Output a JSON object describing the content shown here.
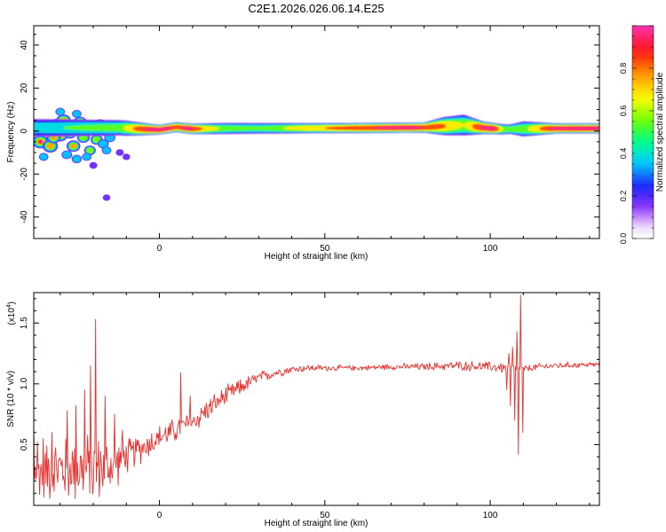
{
  "chart_data": [
    {
      "type": "heatmap",
      "title": "C2E1.2026.026.06.14.E25",
      "xlabel": "Height of straight line (km)",
      "ylabel": "Frequency (Hz)",
      "xlim": [
        -38,
        133
      ],
      "ylim": [
        -50,
        49
      ],
      "x_ticks": [
        0,
        50,
        100
      ],
      "y_ticks": [
        -40,
        -20,
        0,
        20,
        40
      ],
      "colorbar": {
        "label": "Normalized spectral amplitude",
        "range": [
          0.0,
          1.0
        ],
        "ticks": [
          0.0,
          0.2,
          0.4,
          0.6,
          0.8
        ],
        "tick_labels": [
          "0.0",
          "0.2",
          "0.4",
          "0.6",
          "0.8"
        ]
      },
      "band": {
        "description_free": true,
        "center_freq": [
          [
            -38,
            1.5
          ],
          [
            -12,
            1.5
          ],
          [
            -6,
            1.0
          ],
          [
            0,
            0.6
          ],
          [
            5,
            1.8
          ],
          [
            10,
            1.0
          ],
          [
            20,
            1.2
          ],
          [
            40,
            1.3
          ],
          [
            60,
            1.4
          ],
          [
            80,
            1.6
          ],
          [
            85,
            2.2
          ],
          [
            92,
            2.8
          ],
          [
            98,
            1.5
          ],
          [
            104,
            0.8
          ],
          [
            110,
            1.0
          ],
          [
            120,
            1.2
          ],
          [
            133,
            1.2
          ]
        ],
        "half_width": [
          [
            -38,
            3.0
          ],
          [
            -10,
            2.5
          ],
          [
            0,
            1.5
          ],
          [
            20,
            1.8
          ],
          [
            50,
            1.6
          ],
          [
            80,
            1.6
          ],
          [
            86,
            3.0
          ],
          [
            92,
            3.5
          ],
          [
            98,
            2.0
          ],
          [
            106,
            1.5
          ],
          [
            110,
            2.5
          ],
          [
            120,
            1.6
          ],
          [
            133,
            1.6
          ]
        ],
        "amplitude": [
          [
            -38,
            0.4
          ],
          [
            -12,
            0.55
          ],
          [
            -6,
            0.85
          ],
          [
            -2,
            0.95
          ],
          [
            2,
            0.95
          ],
          [
            5,
            0.85
          ],
          [
            9,
            0.95
          ],
          [
            14,
            0.7
          ],
          [
            20,
            0.55
          ],
          [
            30,
            0.5
          ],
          [
            45,
            0.7
          ],
          [
            60,
            0.85
          ],
          [
            75,
            0.95
          ],
          [
            85,
            0.8
          ],
          [
            92,
            0.6
          ],
          [
            97,
            0.9
          ],
          [
            101,
            0.95
          ],
          [
            104,
            0.6
          ],
          [
            110,
            0.55
          ],
          [
            118,
            0.9
          ],
          [
            133,
            0.95
          ]
        ]
      },
      "blobs": [
        [
          -36,
          -5,
          0.9
        ],
        [
          -33,
          -7,
          0.85
        ],
        [
          -31,
          3,
          0.7
        ],
        [
          -30,
          -2,
          0.8
        ],
        [
          -29,
          5,
          0.75
        ],
        [
          -27,
          -1,
          0.6
        ],
        [
          -26,
          -7,
          0.7
        ],
        [
          -24,
          4,
          0.7
        ],
        [
          -23,
          -3,
          0.6
        ],
        [
          -22,
          2,
          0.55
        ],
        [
          -21,
          -9,
          0.5
        ],
        [
          -20,
          1,
          0.5
        ],
        [
          -19,
          -4,
          0.55
        ],
        [
          -18,
          3,
          0.6
        ],
        [
          -17,
          -6,
          0.45
        ],
        [
          -16,
          0,
          0.6
        ],
        [
          -15,
          -3,
          0.45
        ],
        [
          -14,
          2,
          0.5
        ],
        [
          -28,
          -11,
          0.4
        ],
        [
          -25,
          -13,
          0.35
        ],
        [
          -34,
          2,
          0.65
        ],
        [
          -32,
          -3,
          0.7
        ],
        [
          -35,
          0,
          0.5
        ],
        [
          -22,
          -12,
          0.3
        ],
        [
          -16,
          -9,
          0.3
        ],
        [
          -12,
          -10,
          0.15
        ],
        [
          -10,
          -12,
          0.12
        ],
        [
          -16,
          -31,
          0.12
        ],
        [
          -20,
          -16,
          0.15
        ],
        [
          -30,
          9,
          0.3
        ],
        [
          -25,
          8,
          0.3
        ],
        [
          -35,
          -12,
          0.3
        ]
      ]
    },
    {
      "type": "line",
      "xlabel": "Height of straight line (km)",
      "ylabel": "SNR (10 * v/v)",
      "multiplier_label": "(x10",
      "multiplier_exp": "4",
      "multiplier_close": ")",
      "xlim": [
        -38,
        133
      ],
      "ylim": [
        0,
        1.75
      ],
      "x_ticks": [
        0,
        50,
        100
      ],
      "y_ticks": [
        0.5,
        1.0,
        1.5
      ],
      "y_tick_labels": [
        "0.5",
        "1.0",
        "1.5"
      ],
      "series": [
        {
          "name": "SNR",
          "color": "#e8322f",
          "trend": [
            [
              -38,
              0.28
            ],
            [
              -30,
              0.3
            ],
            [
              -20,
              0.3
            ],
            [
              -15,
              0.32
            ],
            [
              -10,
              0.4
            ],
            [
              -5,
              0.48
            ],
            [
              0,
              0.56
            ],
            [
              5,
              0.62
            ],
            [
              10,
              0.68
            ],
            [
              15,
              0.8
            ],
            [
              20,
              0.9
            ],
            [
              25,
              0.98
            ],
            [
              30,
              1.05
            ],
            [
              35,
              1.09
            ],
            [
              40,
              1.12
            ],
            [
              45,
              1.13
            ],
            [
              50,
              1.13
            ],
            [
              60,
              1.13
            ],
            [
              70,
              1.14
            ],
            [
              80,
              1.14
            ],
            [
              90,
              1.15
            ],
            [
              100,
              1.14
            ],
            [
              105,
              1.13
            ],
            [
              110,
              1.12
            ],
            [
              115,
              1.14
            ],
            [
              120,
              1.15
            ],
            [
              133,
              1.16
            ]
          ],
          "noise_amp": [
            [
              -38,
              0.22
            ],
            [
              -30,
              0.26
            ],
            [
              -20,
              0.28
            ],
            [
              -15,
              0.22
            ],
            [
              -10,
              0.14
            ],
            [
              0,
              0.1
            ],
            [
              10,
              0.1
            ],
            [
              20,
              0.08
            ],
            [
              30,
              0.05
            ],
            [
              40,
              0.03
            ],
            [
              60,
              0.02
            ],
            [
              80,
              0.03
            ],
            [
              95,
              0.04
            ],
            [
              100,
              0.04
            ],
            [
              105,
              0.05
            ],
            [
              110,
              0.03
            ],
            [
              133,
              0.02
            ]
          ],
          "spikes": [
            [
              -38.5,
              0.65
            ],
            [
              -36.8,
              0.52
            ],
            [
              -35.2,
              0.55
            ],
            [
              -32.5,
              0.6
            ],
            [
              -27.9,
              0.78
            ],
            [
              -25.3,
              0.82
            ],
            [
              -22.6,
              0.95
            ],
            [
              -20.8,
              1.15
            ],
            [
              -19.2,
              1.53
            ],
            [
              -17.9,
              0.22
            ],
            [
              -16.4,
              0.9
            ],
            [
              -13.5,
              0.75
            ],
            [
              -11.2,
              0.62
            ],
            [
              6.5,
              1.09
            ],
            [
              9.2,
              0.9
            ],
            [
              17.5,
              0.88
            ],
            [
              108.6,
              0.42
            ],
            [
              109.2,
              1.73
            ],
            [
              109.8,
              0.6
            ],
            [
              108.0,
              1.43
            ],
            [
              107.4,
              0.7
            ],
            [
              106.8,
              1.3
            ],
            [
              106.2,
              0.82
            ],
            [
              105.6,
              1.25
            ],
            [
              105.0,
              0.95
            ]
          ]
        }
      ]
    }
  ]
}
